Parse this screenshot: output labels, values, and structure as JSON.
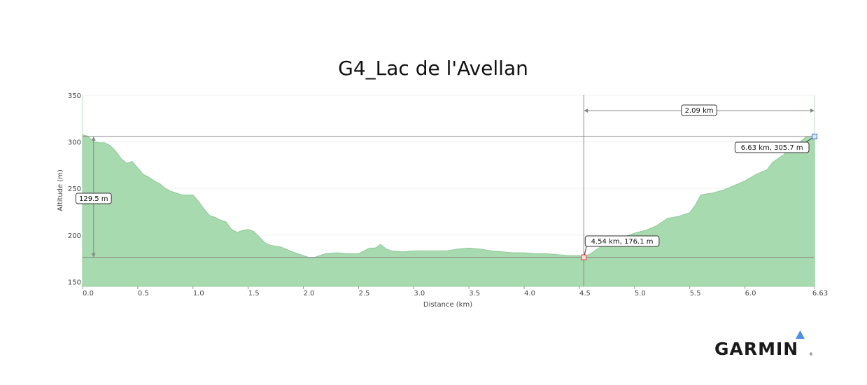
{
  "chart_data": {
    "type": "area",
    "title": "G4_Lac de l'Avellan",
    "xlabel": "Distance   (km)",
    "ylabel": "Altitude  (m)",
    "xlim": [
      0,
      6.63
    ],
    "ylim": [
      145,
      350
    ],
    "xticks": [
      "0.0",
      "0.5",
      "1.0",
      "1.5",
      "2.0",
      "2.5",
      "3.0",
      "3.5",
      "4.0",
      "4.5",
      "5.0",
      "5.5",
      "6.0",
      "6.63"
    ],
    "yticks": [
      "150",
      "200",
      "250",
      "300",
      "350"
    ],
    "fill_color": "#a8dab0",
    "line_color": "#8fc998",
    "series": [
      {
        "x": [
          0,
          0.05,
          0.1,
          0.15,
          0.2,
          0.25,
          0.3,
          0.35,
          0.4,
          0.45,
          0.5,
          0.55,
          0.6,
          0.65,
          0.7,
          0.75,
          0.8,
          0.9,
          1.0,
          1.05,
          1.1,
          1.15,
          1.2,
          1.25,
          1.3,
          1.35,
          1.4,
          1.45,
          1.5,
          1.55,
          1.6,
          1.65,
          1.7,
          1.75,
          1.8,
          1.9,
          2.0,
          2.05,
          2.1,
          2.2,
          2.3,
          2.4,
          2.5,
          2.6,
          2.65,
          2.7,
          2.72,
          2.75,
          2.8,
          2.9,
          3.0,
          3.1,
          3.2,
          3.3,
          3.4,
          3.5,
          3.6,
          3.7,
          3.8,
          3.9,
          4.0,
          4.1,
          4.2,
          4.3,
          4.4,
          4.5,
          4.54,
          4.6,
          4.7,
          4.8,
          4.9,
          5.0,
          5.1,
          5.2,
          5.3,
          5.35,
          5.4,
          5.45,
          5.5,
          5.55,
          5.6,
          5.7,
          5.8,
          5.9,
          6.0,
          6.1,
          6.2,
          6.25,
          6.3,
          6.35,
          6.4,
          6.45,
          6.5,
          6.55,
          6.63
        ],
        "y": [
          307.5,
          306,
          300,
          299,
          299,
          296,
          290,
          282,
          277,
          279,
          272,
          265,
          262,
          258,
          255,
          250,
          247,
          243,
          243,
          236,
          228,
          221,
          219,
          216,
          214,
          206,
          203,
          205,
          206,
          204,
          198,
          192,
          189,
          188,
          187,
          182,
          178,
          176,
          176,
          180,
          181,
          180,
          180,
          186,
          186,
          190,
          188,
          185,
          183,
          182,
          183,
          183,
          183,
          183,
          185,
          186,
          185,
          183,
          182,
          181,
          181,
          180,
          180,
          179,
          178,
          178,
          176.1,
          180,
          188,
          188,
          198,
          202,
          205,
          210,
          218,
          219,
          220,
          222,
          224,
          232,
          243,
          245,
          248,
          253,
          258,
          265,
          270,
          278,
          282,
          286,
          292,
          296,
          300,
          305,
          305.7
        ]
      }
    ],
    "crosshair_lines": {
      "vertical_x": 4.54,
      "horizontal_y_high": 305.7,
      "horizontal_y_low": 176.1,
      "measure_x": 0.1
    },
    "annotations": {
      "distance_label": "2.09 km",
      "altitude_diff_label": "129.5 m",
      "point_low_label": "4.54 km, 176.1 m",
      "point_high_label": "6.63 km, 305.7 m",
      "point_low": {
        "x": 4.54,
        "y": 176.1
      },
      "point_high": {
        "x": 6.63,
        "y": 305.7
      }
    }
  },
  "logo": {
    "text": "GARMIN",
    "reg": "®",
    "color": "#1a1a1a",
    "triangle_color": "#4d8fe0"
  }
}
